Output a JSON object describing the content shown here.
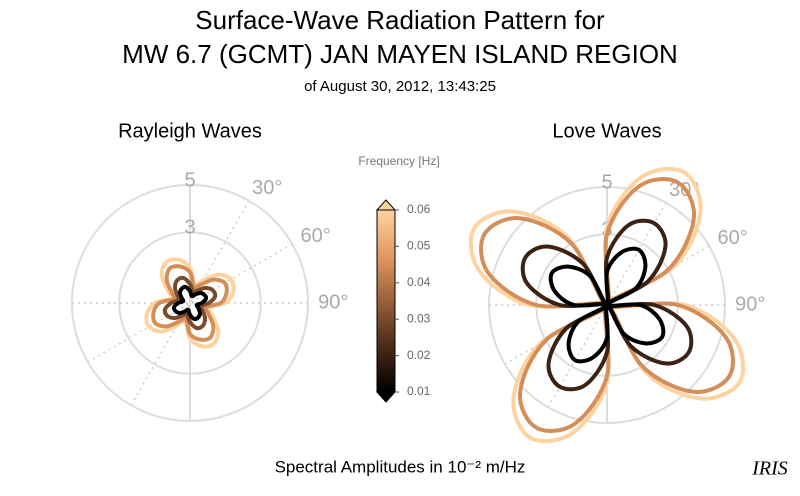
{
  "title": [
    "Surface-Wave Radiation Pattern for",
    "MW 6.7 (GCMT) JAN MAYEN ISLAND REGION"
  ],
  "subtitle": "of August 30, 2012, 13:43:25",
  "footer": "Spectral Amplitudes in 10⁻² m/Hz",
  "logo": "IRIS",
  "colorbar": {
    "title": "Frequency [Hz]",
    "lim": [
      0.01,
      0.06
    ],
    "ticks": [
      0.01,
      0.02,
      0.03,
      0.04,
      0.05,
      0.06
    ],
    "colors": [
      "#000000",
      "#4a2a17",
      "#99603a",
      "#e39a62",
      "#ffd3a0"
    ]
  },
  "chart_data": [
    {
      "type": "polar",
      "title": "Rayleigh Waves",
      "rlim": [
        0,
        5
      ],
      "rticks": [
        3,
        5
      ],
      "thetaticks": [
        {
          "value": 30,
          "label": "30°"
        },
        {
          "value": 60,
          "label": "60°"
        },
        {
          "value": 90,
          "label": "90°"
        }
      ],
      "theta": [
        0,
        15,
        30,
        45,
        60,
        75,
        90,
        105,
        120,
        135,
        150,
        165,
        180,
        195,
        210,
        225,
        240,
        255,
        270,
        285,
        300,
        315,
        330,
        345
      ],
      "series": [
        {
          "frequency": 0.06,
          "values": [
            1.5,
            0.8,
            1.1,
            1.7,
            2.0,
            1.9,
            1.5,
            0.8,
            1.1,
            1.7,
            2.0,
            1.9,
            1.5,
            0.8,
            1.1,
            1.7,
            2.0,
            1.9,
            1.5,
            0.8,
            1.1,
            1.7,
            2.0,
            1.9
          ]
        },
        {
          "frequency": 0.045,
          "values": [
            1.3,
            0.7,
            0.9,
            1.4,
            1.7,
            1.6,
            1.3,
            0.7,
            0.9,
            1.4,
            1.7,
            1.6,
            1.3,
            0.7,
            0.9,
            1.4,
            1.7,
            1.6,
            1.3,
            0.7,
            0.9,
            1.4,
            1.7,
            1.6
          ]
        },
        {
          "frequency": 0.03,
          "values": [
            0.8,
            0.5,
            0.6,
            0.9,
            1.1,
            1.1,
            0.8,
            0.5,
            0.6,
            0.9,
            1.1,
            1.1,
            0.8,
            0.5,
            0.6,
            0.9,
            1.1,
            1.1,
            0.8,
            0.5,
            0.6,
            0.9,
            1.1,
            1.1
          ]
        },
        {
          "frequency": 0.01,
          "values": [
            0.5,
            0.3,
            0.4,
            0.6,
            0.7,
            0.7,
            0.5,
            0.3,
            0.4,
            0.6,
            0.7,
            0.7,
            0.5,
            0.3,
            0.4,
            0.6,
            0.7,
            0.7,
            0.5,
            0.3,
            0.4,
            0.6,
            0.7,
            0.7
          ]
        }
      ]
    },
    {
      "type": "polar",
      "title": "Love Waves",
      "rlim": [
        0,
        5
      ],
      "rticks": [
        3,
        5
      ],
      "thetaticks": [
        {
          "value": 30,
          "label": "30°"
        },
        {
          "value": 60,
          "label": "60°"
        },
        {
          "value": 90,
          "label": "90°"
        }
      ],
      "theta": [
        0,
        15,
        30,
        45,
        60,
        75,
        90,
        105,
        120,
        135,
        150,
        165,
        180,
        195,
        210,
        225,
        240,
        255,
        270,
        285,
        300,
        315,
        330,
        345
      ],
      "series": [
        {
          "frequency": 0.06,
          "values": [
            3.3,
            5.6,
            6.5,
            5.6,
            3.3,
            0,
            3.3,
            5.6,
            6.5,
            5.6,
            3.3,
            0,
            3.3,
            5.6,
            6.5,
            5.6,
            3.3,
            0,
            3.3,
            5.6,
            6.5,
            5.6,
            3.3,
            0
          ]
        },
        {
          "frequency": 0.045,
          "values": [
            3.0,
            5.2,
            6.0,
            5.2,
            3.0,
            0,
            3.0,
            5.2,
            6.0,
            5.2,
            3.0,
            0,
            3.0,
            5.2,
            6.0,
            5.2,
            3.0,
            0,
            3.0,
            5.2,
            6.0,
            5.2,
            3.0,
            0
          ]
        },
        {
          "frequency": 0.02,
          "values": [
            2.0,
            3.5,
            4.0,
            3.5,
            2.0,
            0,
            2.0,
            3.5,
            4.0,
            3.5,
            2.0,
            0,
            2.0,
            3.5,
            4.0,
            3.5,
            2.0,
            0,
            2.0,
            3.5,
            4.0,
            3.5,
            2.0,
            0
          ]
        },
        {
          "frequency": 0.01,
          "values": [
            1.4,
            2.3,
            2.7,
            2.3,
            1.4,
            0,
            1.4,
            2.3,
            2.7,
            2.3,
            1.4,
            0,
            1.4,
            2.3,
            2.7,
            2.3,
            1.4,
            0,
            1.4,
            2.3,
            2.7,
            2.3,
            1.4,
            0
          ]
        }
      ]
    }
  ]
}
